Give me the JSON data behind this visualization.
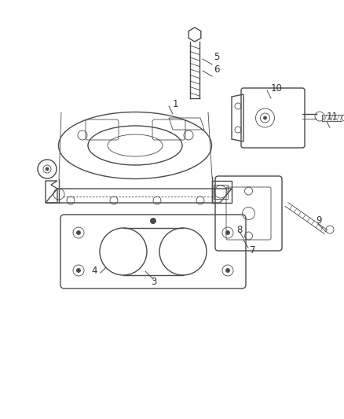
{
  "bg_color": "#ffffff",
  "line_color": "#4a4a4a",
  "label_color": "#333333",
  "figsize": [
    4.38,
    5.33
  ],
  "dpi": 100,
  "lw_main": 1.0,
  "lw_thin": 0.6,
  "label_fs": 8.5
}
